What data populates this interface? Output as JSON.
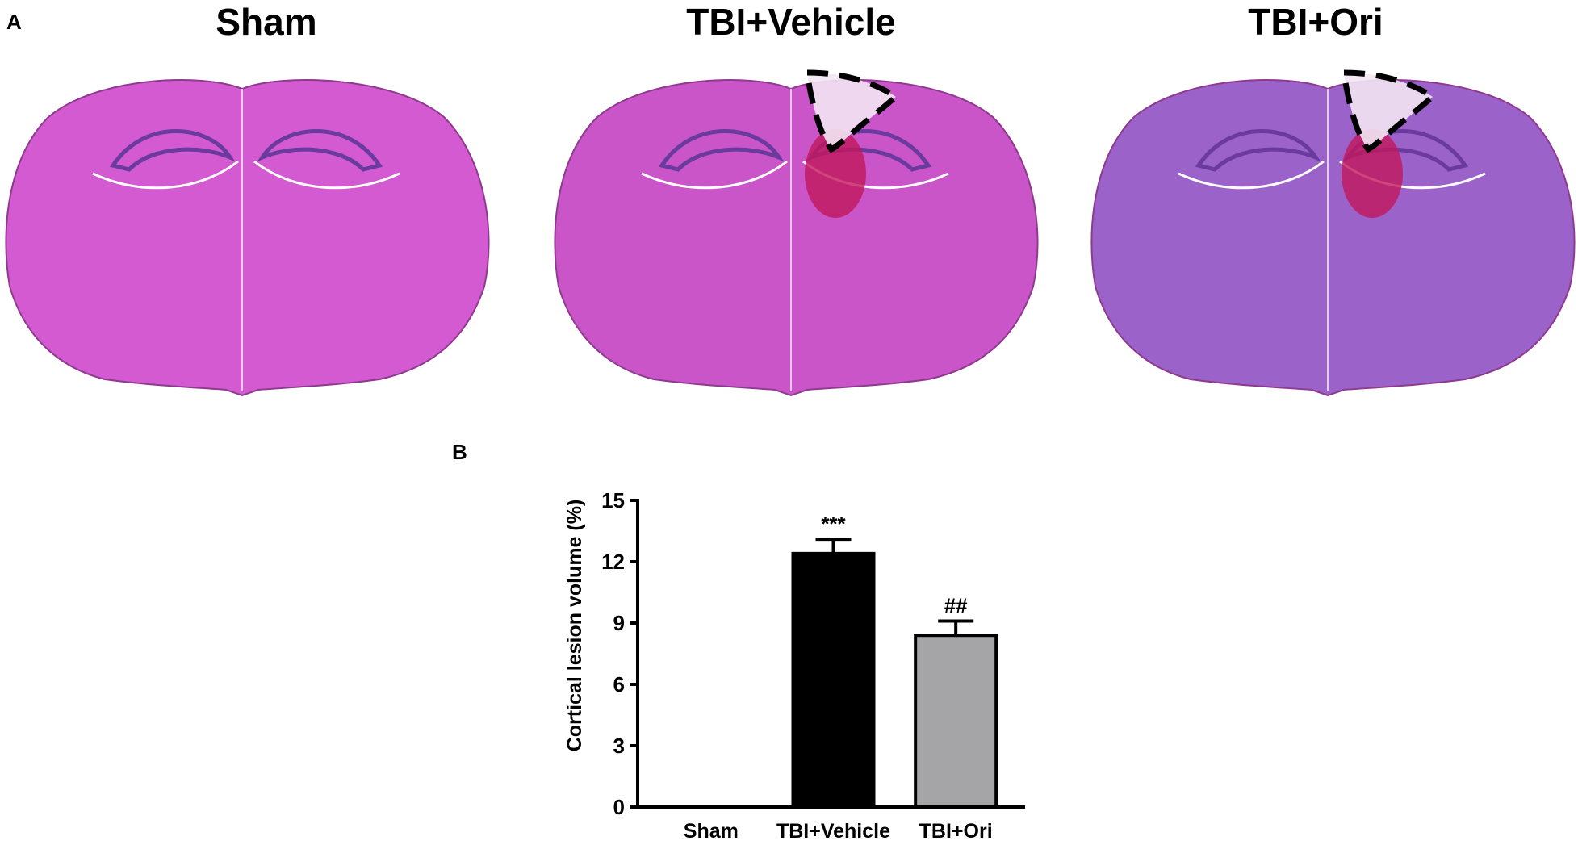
{
  "panel_a": {
    "letter": "A",
    "titles": [
      "Sham",
      "TBI+Vehicle",
      "TBI+Ori"
    ],
    "images": [
      {
        "icon": "brain-section-he-stain-icon",
        "tint": "#d35ad0",
        "lesion": false
      },
      {
        "icon": "brain-section-he-stain-icon",
        "tint": "#c955c9",
        "lesion": true
      },
      {
        "icon": "brain-section-he-stain-icon",
        "tint": "#9b62c9",
        "lesion": true
      }
    ],
    "colors": {
      "hemorrhage": "#c2185b",
      "lesion_outline": "#000000"
    }
  },
  "panel_b": {
    "letter": "B"
  },
  "chart_data": {
    "type": "bar",
    "categories": [
      "Sham",
      "TBI+Vehicle",
      "TBI+Ori"
    ],
    "values": [
      0,
      12.4,
      8.4
    ],
    "errors": [
      0,
      0.7,
      0.7
    ],
    "annotations": [
      "",
      "***",
      "##"
    ],
    "colors": [
      "#ffffff",
      "#000000",
      "#a5a5a8"
    ],
    "title": "",
    "xlabel": "",
    "ylabel": "Cortical lesion volume (%)",
    "ylim": [
      0,
      15
    ],
    "yticks": [
      0,
      3,
      6,
      9,
      12,
      15
    ],
    "grid": false
  }
}
